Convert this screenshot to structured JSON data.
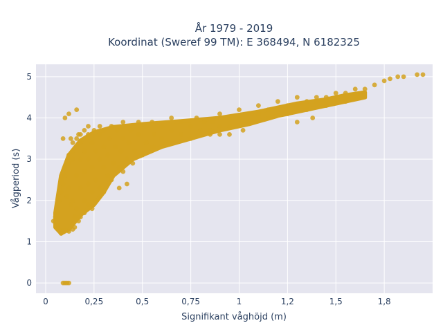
{
  "chart_data": {
    "type": "scatter",
    "title_line1": "År 1979 - 2019",
    "title_line2": "Koordinat (Sweref 99 TM): E 368494, N 6182325",
    "xlabel": "Signifikant våghöjd (m)",
    "ylabel": "Vågperiod (s)",
    "xlim": [
      -0.05,
      2.0
    ],
    "ylim": [
      -0.25,
      5.3
    ],
    "x_ticks": [
      {
        "value": 0,
        "label": "0"
      },
      {
        "value": 0.25,
        "label": "0,25"
      },
      {
        "value": 0.5,
        "label": "0,5"
      },
      {
        "value": 0.75,
        "label": "0,75"
      },
      {
        "value": 1.0,
        "label": "1"
      },
      {
        "value": 1.25,
        "label": "1,2"
      },
      {
        "value": 1.5,
        "label": "1,5"
      },
      {
        "value": 1.75,
        "label": "1,8"
      }
    ],
    "y_ticks": [
      {
        "value": 0,
        "label": "0"
      },
      {
        "value": 1,
        "label": "1"
      },
      {
        "value": 2,
        "label": "2"
      },
      {
        "value": 3,
        "label": "3"
      },
      {
        "value": 4,
        "label": "4"
      },
      {
        "value": 5,
        "label": "5"
      }
    ],
    "grid": true,
    "marker_color": "#d4a21f",
    "plot_bg": "#e5e5ef",
    "series": [
      {
        "x": [
          0.09,
          0.1,
          0.11,
          0.12,
          0.04,
          0.05,
          0.06,
          0.07,
          0.06,
          0.08,
          0.09,
          0.1,
          0.12,
          0.14,
          0.15,
          0.07,
          0.08,
          0.09,
          0.11,
          0.13,
          0.15,
          0.17,
          0.08,
          0.1,
          0.12,
          0.14,
          0.16,
          0.18,
          0.2,
          0.1,
          0.12,
          0.14,
          0.16,
          0.18,
          0.2,
          0.22,
          0.24,
          0.12,
          0.14,
          0.16,
          0.18,
          0.2,
          0.22,
          0.24,
          0.26,
          0.28,
          0.14,
          0.16,
          0.18,
          0.2,
          0.22,
          0.24,
          0.26,
          0.28,
          0.3,
          0.18,
          0.2,
          0.22,
          0.24,
          0.26,
          0.28,
          0.3,
          0.32,
          0.34,
          0.22,
          0.25,
          0.28,
          0.3,
          0.32,
          0.35,
          0.38,
          0.4,
          0.28,
          0.3,
          0.33,
          0.36,
          0.39,
          0.42,
          0.45,
          0.34,
          0.37,
          0.4,
          0.43,
          0.46,
          0.5,
          0.4,
          0.44,
          0.48,
          0.52,
          0.56,
          0.48,
          0.52,
          0.56,
          0.6,
          0.64,
          0.55,
          0.6,
          0.65,
          0.7,
          0.75,
          0.65,
          0.7,
          0.75,
          0.8,
          0.85,
          0.78,
          0.82,
          0.86,
          0.9,
          0.95,
          0.9,
          0.95,
          1.0,
          1.05,
          1.0,
          1.05,
          1.1,
          1.15,
          1.1,
          1.15,
          1.2,
          1.25,
          1.2,
          1.25,
          1.3,
          1.35,
          1.3,
          1.35,
          1.4,
          1.45,
          1.4,
          1.45,
          1.5,
          1.55,
          1.6,
          1.65,
          1.7,
          1.75,
          1.78,
          1.82,
          1.85,
          1.92,
          1.95,
          0.16,
          0.12,
          0.1,
          0.13,
          0.09,
          0.2,
          0.17,
          0.38,
          0.42,
          0.55,
          0.62,
          0.95,
          1.02,
          0.85,
          0.9,
          1.3,
          1.38,
          1.55,
          1.62
        ],
        "y": [
          0.0,
          0.0,
          0.0,
          0.0,
          1.5,
          1.6,
          1.4,
          1.3,
          1.7,
          1.2,
          1.25,
          1.3,
          1.25,
          1.3,
          1.35,
          2.0,
          2.2,
          2.4,
          2.1,
          1.9,
          1.6,
          1.5,
          2.5,
          2.6,
          2.3,
          2.0,
          1.8,
          1.6,
          1.7,
          2.8,
          2.9,
          3.0,
          2.6,
          2.3,
          2.0,
          1.9,
          1.8,
          3.1,
          3.2,
          3.3,
          3.0,
          2.7,
          2.4,
          2.2,
          2.0,
          2.1,
          3.4,
          3.5,
          3.4,
          3.2,
          3.0,
          2.8,
          2.5,
          2.3,
          2.2,
          3.6,
          3.7,
          3.6,
          3.4,
          3.2,
          3.0,
          2.8,
          2.6,
          2.5,
          3.8,
          3.7,
          3.6,
          3.3,
          3.1,
          2.9,
          2.8,
          2.7,
          3.8,
          3.7,
          3.5,
          3.3,
          3.2,
          3.0,
          2.9,
          3.8,
          3.7,
          3.5,
          3.4,
          3.2,
          3.1,
          3.9,
          3.7,
          3.6,
          3.4,
          3.3,
          3.9,
          3.8,
          3.6,
          3.5,
          3.4,
          3.9,
          3.8,
          3.7,
          3.6,
          3.5,
          4.0,
          3.9,
          3.8,
          3.7,
          3.7,
          4.0,
          3.9,
          3.9,
          3.8,
          3.8,
          4.1,
          4.0,
          4.0,
          3.9,
          4.2,
          4.1,
          4.1,
          4.0,
          4.3,
          4.2,
          4.2,
          4.1,
          4.4,
          4.3,
          4.3,
          4.2,
          4.5,
          4.4,
          4.4,
          4.3,
          4.5,
          4.5,
          4.6,
          4.6,
          4.7,
          4.7,
          4.8,
          4.9,
          4.95,
          5.0,
          5.0,
          5.05,
          5.05,
          4.2,
          4.1,
          4.0,
          3.5,
          3.5,
          3.2,
          3.6,
          2.3,
          2.4,
          3.3,
          3.4,
          3.6,
          3.7,
          3.6,
          3.6,
          3.9,
          4.0,
          4.4,
          4.5
        ]
      }
    ]
  }
}
